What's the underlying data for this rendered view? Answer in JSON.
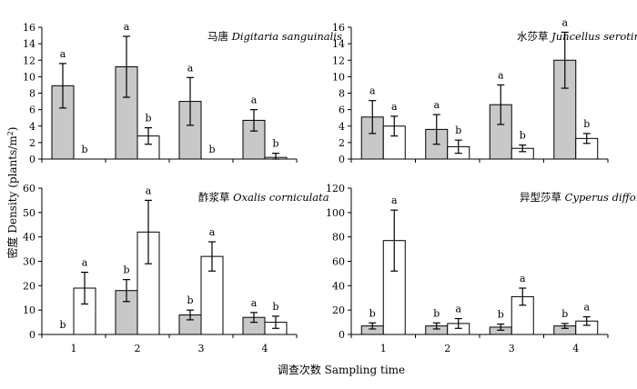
{
  "chart_data": {
    "type": "bar",
    "ylabel": "密度 Density (plants/m2)",
    "ylabel_main": "密度 Density (plants/m",
    "ylabel_sup": "2",
    "ylabel_tail": ")",
    "xlabel": "调查次数 Sampling time",
    "categories": [
      "1",
      "2",
      "3",
      "4"
    ],
    "colors": {
      "filled": "#c8c8c8",
      "open": "#ffffff",
      "stroke": "#000000"
    },
    "panels": [
      {
        "title_cn": "马唐",
        "title_latin": "Digitaria sanguinalis",
        "ylim": [
          0,
          16
        ],
        "yticks": [
          0,
          2,
          4,
          6,
          8,
          10,
          12,
          14,
          16
        ],
        "show_xticks": false,
        "series": [
          {
            "values": [
              8.9,
              11.2,
              7.0,
              4.7
            ],
            "errors": [
              2.7,
              3.7,
              2.9,
              1.3
            ],
            "labels": [
              "a",
              "a",
              "a",
              "a"
            ]
          },
          {
            "values": [
              0.0,
              2.8,
              0.0,
              0.2
            ],
            "errors": [
              0.0,
              1.0,
              0.0,
              0.5
            ],
            "labels": [
              "b",
              "b",
              "b",
              "b"
            ]
          }
        ]
      },
      {
        "title_cn": "水莎草",
        "title_latin": "Juncellus serotinus",
        "ylim": [
          0,
          16
        ],
        "yticks": [
          0,
          2,
          4,
          6,
          8,
          10,
          12,
          14,
          16
        ],
        "show_xticks": false,
        "series": [
          {
            "values": [
              5.1,
              3.6,
              6.6,
              12.0
            ],
            "errors": [
              2.0,
              1.8,
              2.4,
              3.4
            ],
            "labels": [
              "a",
              "a",
              "a",
              "a"
            ]
          },
          {
            "values": [
              4.0,
              1.5,
              1.3,
              2.5
            ],
            "errors": [
              1.2,
              0.8,
              0.4,
              0.6
            ],
            "labels": [
              "a",
              "b",
              "b",
              "b"
            ]
          }
        ]
      },
      {
        "title_cn": "酢浆草",
        "title_latin": "Oxalis corniculata",
        "ylim": [
          0,
          60
        ],
        "yticks": [
          0,
          10,
          20,
          30,
          40,
          50,
          60
        ],
        "show_xticks": true,
        "series": [
          {
            "values": [
              0.0,
              18.0,
              8.0,
              7.0
            ],
            "errors": [
              0.0,
              4.5,
              2.0,
              2.0
            ],
            "labels": [
              "b",
              "b",
              "b",
              "a"
            ]
          },
          {
            "values": [
              19.0,
              42.0,
              32.0,
              5.0
            ],
            "errors": [
              6.5,
              13.0,
              6.0,
              2.5
            ],
            "labels": [
              "a",
              "a",
              "a",
              "b"
            ]
          }
        ]
      },
      {
        "title_cn": "异型莎草",
        "title_latin": "Cyperus difformis",
        "ylim": [
          0,
          120
        ],
        "yticks": [
          0,
          20,
          40,
          60,
          80,
          100,
          120
        ],
        "show_xticks": true,
        "series": [
          {
            "values": [
              7.0,
              7.0,
              6.0,
              7.0
            ],
            "errors": [
              2.5,
              2.5,
              2.5,
              2.0
            ],
            "labels": [
              "b",
              "b",
              "b",
              "b"
            ]
          },
          {
            "values": [
              77.0,
              9.0,
              31.0,
              11.0
            ],
            "errors": [
              25.0,
              4.0,
              7.0,
              3.5
            ],
            "labels": [
              "a",
              "a",
              "a",
              "a"
            ]
          }
        ]
      }
    ]
  }
}
